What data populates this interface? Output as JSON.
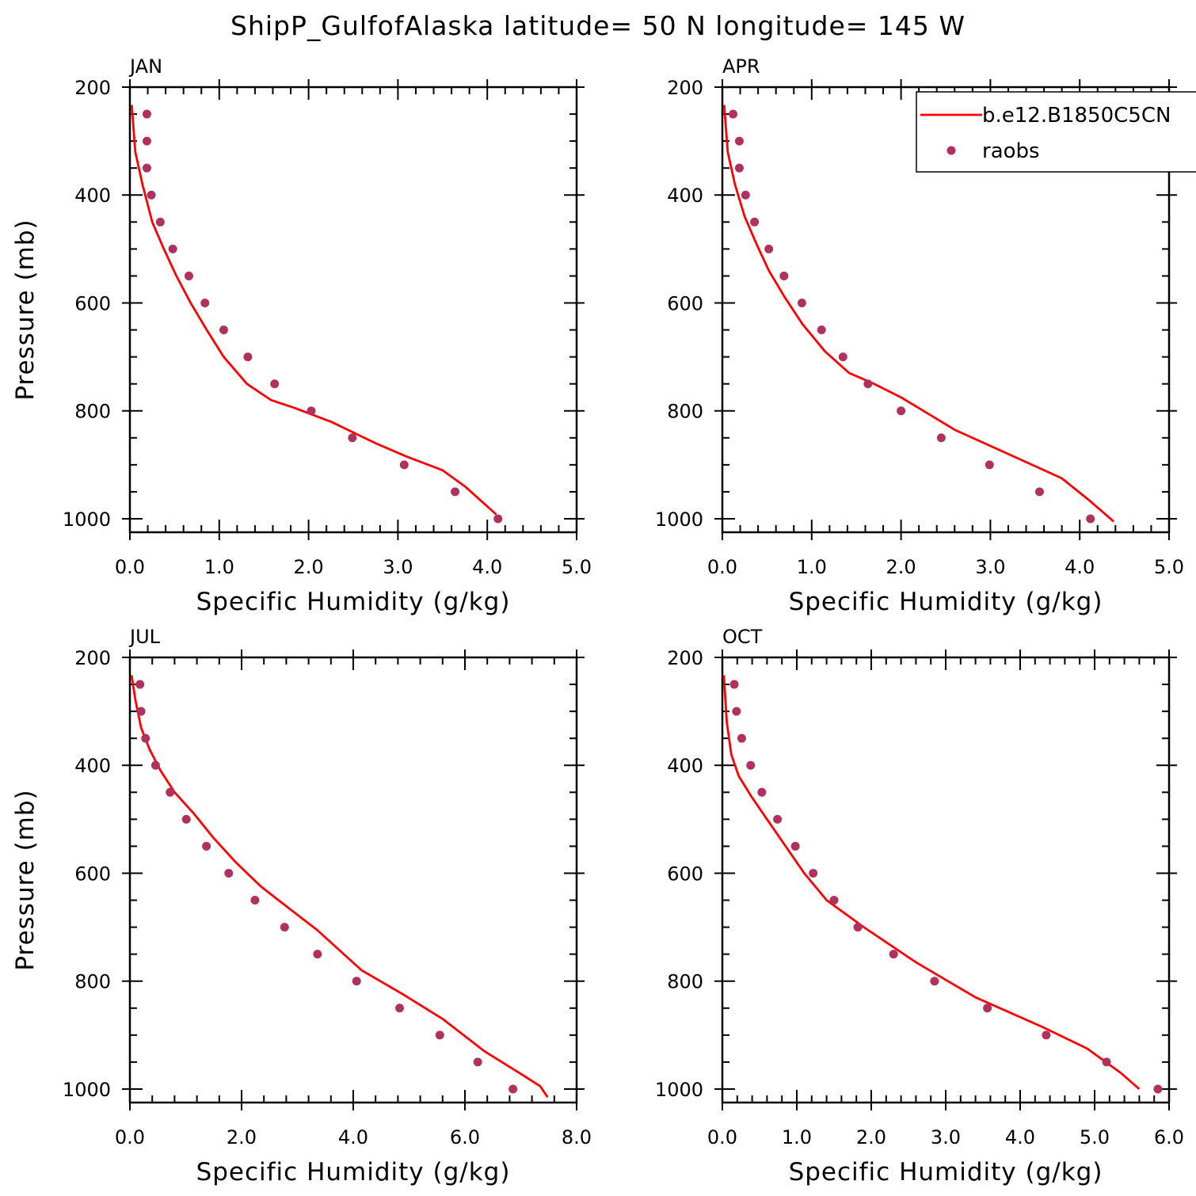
{
  "title": "ShipP_GulfofAlaska  latitude= 50 N longitude= 145 W",
  "colors": {
    "model_line": "#ff0000",
    "raobs_marker": "#b03060",
    "axes": "#000000"
  },
  "legend": {
    "placement": "top-right of APR panel",
    "entries": [
      "b.e12.B1850C5CN",
      "raobs"
    ]
  },
  "chart_data": [
    {
      "type": "line",
      "panel": "JAN",
      "xlabel": "Specific Humidity (g/kg)",
      "ylabel": "Pressure (mb)",
      "xlim": [
        0,
        5
      ],
      "ylim": [
        200,
        1025
      ],
      "y_inverted": true,
      "xticks": [
        "0.0",
        "1.0",
        "2.0",
        "3.0",
        "4.0",
        "5.0"
      ],
      "yticks": [
        "200",
        "400",
        "600",
        "800",
        "1000"
      ],
      "series": [
        {
          "name": "b.e12.B1850C5CN",
          "style": "line",
          "x": [
            0.02,
            0.06,
            0.14,
            0.25,
            0.38,
            0.52,
            0.68,
            0.86,
            1.05,
            1.31,
            1.58,
            1.85,
            2.25,
            2.75,
            3.1,
            3.5,
            3.75,
            4.1
          ],
          "y": [
            233,
            320,
            380,
            450,
            500,
            550,
            600,
            650,
            700,
            750,
            780,
            795,
            820,
            860,
            885,
            910,
            940,
            992
          ]
        },
        {
          "name": "raobs",
          "style": "markers",
          "x": [
            0.19,
            0.19,
            0.19,
            0.24,
            0.34,
            0.48,
            0.66,
            0.84,
            1.05,
            1.32,
            1.62,
            2.03,
            2.49,
            3.07,
            3.64,
            4.12
          ],
          "y": [
            250,
            300,
            350,
            400,
            450,
            500,
            550,
            600,
            650,
            700,
            750,
            800,
            850,
            900,
            950,
            1000
          ]
        }
      ]
    },
    {
      "type": "line",
      "panel": "APR",
      "xlabel": "Specific Humidity (g/kg)",
      "ylabel": "",
      "xlim": [
        0,
        5
      ],
      "ylim": [
        200,
        1025
      ],
      "y_inverted": true,
      "xticks": [
        "0.0",
        "1.0",
        "2.0",
        "3.0",
        "4.0",
        "5.0"
      ],
      "yticks": [
        "200",
        "400",
        "600",
        "800",
        "1000"
      ],
      "series": [
        {
          "name": "b.e12.B1850C5CN",
          "style": "line",
          "x": [
            0.02,
            0.06,
            0.14,
            0.25,
            0.38,
            0.52,
            0.7,
            0.9,
            1.15,
            1.42,
            1.7,
            2.0,
            2.3,
            2.6,
            3.0,
            3.4,
            3.8,
            4.1,
            4.38
          ],
          "y": [
            233,
            320,
            380,
            440,
            490,
            540,
            590,
            640,
            690,
            730,
            750,
            775,
            805,
            835,
            865,
            895,
            925,
            965,
            1005
          ]
        },
        {
          "name": "raobs",
          "style": "markers",
          "x": [
            0.12,
            0.19,
            0.19,
            0.26,
            0.36,
            0.52,
            0.69,
            0.89,
            1.11,
            1.35,
            1.63,
            2.0,
            2.45,
            2.99,
            3.55,
            4.12
          ],
          "y": [
            250,
            300,
            350,
            400,
            450,
            500,
            550,
            600,
            650,
            700,
            750,
            800,
            850,
            900,
            950,
            1000
          ]
        }
      ]
    },
    {
      "type": "line",
      "panel": "JUL",
      "xlabel": "Specific Humidity (g/kg)",
      "ylabel": "Pressure (mb)",
      "xlim": [
        0,
        8
      ],
      "ylim": [
        200,
        1025
      ],
      "y_inverted": true,
      "xticks": [
        "0.0",
        "2.0",
        "4.0",
        "6.0",
        "8.0"
      ],
      "yticks": [
        "200",
        "400",
        "600",
        "800",
        "1000"
      ],
      "series": [
        {
          "name": "b.e12.B1850C5CN",
          "style": "line",
          "x": [
            0.03,
            0.1,
            0.2,
            0.35,
            0.55,
            0.8,
            1.15,
            1.5,
            1.9,
            2.35,
            2.85,
            3.35,
            4.15,
            4.9,
            5.6,
            6.35,
            7.05,
            7.35,
            7.48
          ],
          "y": [
            233,
            280,
            330,
            370,
            410,
            450,
            490,
            535,
            580,
            625,
            665,
            705,
            780,
            825,
            870,
            930,
            975,
            995,
            1015
          ]
        },
        {
          "name": "raobs",
          "style": "markers",
          "x": [
            0.18,
            0.2,
            0.28,
            0.46,
            0.72,
            1.01,
            1.37,
            1.77,
            2.24,
            2.77,
            3.36,
            4.06,
            4.83,
            5.55,
            6.23,
            6.86
          ],
          "y": [
            250,
            300,
            350,
            400,
            450,
            500,
            550,
            600,
            650,
            700,
            750,
            800,
            850,
            900,
            950,
            1000
          ]
        }
      ]
    },
    {
      "type": "line",
      "panel": "OCT",
      "xlabel": "Specific Humidity (g/kg)",
      "ylabel": "",
      "xlim": [
        0,
        6
      ],
      "ylim": [
        200,
        1025
      ],
      "y_inverted": true,
      "xticks": [
        "0.0",
        "1.0",
        "2.0",
        "3.0",
        "4.0",
        "5.0",
        "6.0"
      ],
      "yticks": [
        "200",
        "400",
        "600",
        "800",
        "1000"
      ],
      "series": [
        {
          "name": "b.e12.B1850C5CN",
          "style": "line",
          "x": [
            0.02,
            0.06,
            0.12,
            0.22,
            0.4,
            0.6,
            0.85,
            1.1,
            1.4,
            1.9,
            2.6,
            3.4,
            4.3,
            4.9,
            5.35,
            5.6
          ],
          "y": [
            233,
            320,
            380,
            420,
            460,
            500,
            550,
            600,
            650,
            700,
            765,
            830,
            885,
            925,
            970,
            1000
          ]
        },
        {
          "name": "raobs",
          "style": "markers",
          "x": [
            0.16,
            0.19,
            0.26,
            0.38,
            0.53,
            0.74,
            0.98,
            1.22,
            1.5,
            1.82,
            2.3,
            2.85,
            3.56,
            4.35,
            5.16,
            5.85
          ],
          "y": [
            250,
            300,
            350,
            400,
            450,
            500,
            550,
            600,
            650,
            700,
            750,
            800,
            850,
            900,
            950,
            1000
          ]
        }
      ]
    }
  ]
}
